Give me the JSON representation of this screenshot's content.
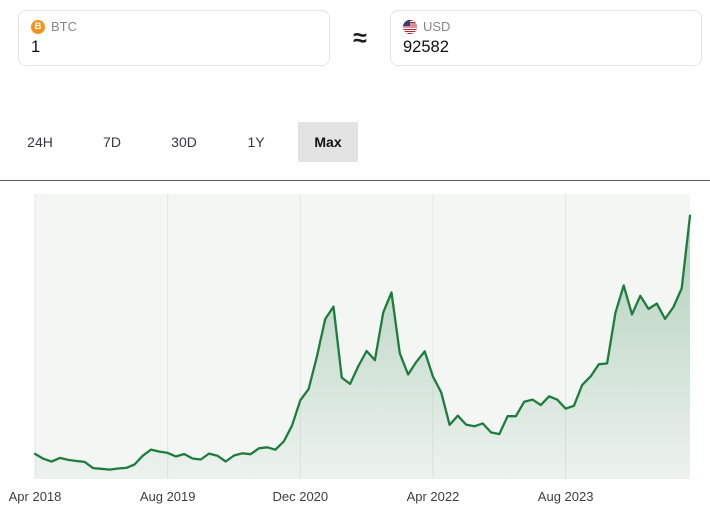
{
  "converter": {
    "from": {
      "currency": "BTC",
      "amount": "1",
      "icon": "bitcoin-icon",
      "icon_glyph": "B",
      "icon_color": "#f7931a"
    },
    "approx_symbol": "≈",
    "to": {
      "currency": "USD",
      "amount": "92582",
      "icon": "us-flag-icon"
    }
  },
  "range_tabs": {
    "options": [
      "24H",
      "7D",
      "30D",
      "1Y",
      "Max"
    ],
    "selected": "Max"
  },
  "chart_data": {
    "type": "area",
    "title": "BTC to USD price chart (Max range)",
    "xlabel": "",
    "ylabel": "",
    "x_start": "2018-04",
    "x_interval": "month",
    "months": [
      "2018-04",
      "2018-05",
      "2018-06",
      "2018-07",
      "2018-08",
      "2018-09",
      "2018-10",
      "2018-11",
      "2018-12",
      "2019-01",
      "2019-02",
      "2019-03",
      "2019-04",
      "2019-05",
      "2019-06",
      "2019-07",
      "2019-08",
      "2019-09",
      "2019-10",
      "2019-11",
      "2019-12",
      "2020-01",
      "2020-02",
      "2020-03",
      "2020-04",
      "2020-05",
      "2020-06",
      "2020-07",
      "2020-08",
      "2020-09",
      "2020-10",
      "2020-11",
      "2020-12",
      "2021-01",
      "2021-02",
      "2021-03",
      "2021-04",
      "2021-05",
      "2021-06",
      "2021-07",
      "2021-08",
      "2021-09",
      "2021-10",
      "2021-11",
      "2021-12",
      "2022-01",
      "2022-02",
      "2022-03",
      "2022-04",
      "2022-05",
      "2022-06",
      "2022-07",
      "2022-08",
      "2022-09",
      "2022-10",
      "2022-11",
      "2022-12",
      "2023-01",
      "2023-02",
      "2023-03",
      "2023-04",
      "2023-05",
      "2023-06",
      "2023-07",
      "2023-08",
      "2023-09",
      "2023-10",
      "2023-11",
      "2023-12",
      "2024-01",
      "2024-02",
      "2024-03",
      "2024-04",
      "2024-05",
      "2024-06",
      "2024-07",
      "2024-08",
      "2024-09",
      "2024-10",
      "2024-11"
    ],
    "prices": [
      9240,
      7494,
      6404,
      7780,
      7037,
      6625,
      6317,
      4017,
      3742,
      3457,
      3854,
      4105,
      5350,
      8574,
      10817,
      10085,
      9630,
      8293,
      9199,
      7569,
      7193,
      9350,
      8599,
      6438,
      8658,
      9461,
      9137,
      11323,
      11680,
      10784,
      13781,
      19625,
      28994,
      33114,
      45137,
      58918,
      63500,
      37332,
      35040,
      41626,
      47166,
      43790,
      61318,
      68700,
      46306,
      38483,
      43193,
      47000,
      37714,
      31792,
      19942,
      23336,
      20049,
      19431,
      20495,
      17168,
      16547,
      23139,
      23147,
      28478,
      29268,
      27219,
      30477,
      29230,
      25931,
      26967,
      34667,
      37718,
      42265,
      42580,
      61198,
      71333,
      60636,
      67491,
      62678,
      64619,
      58969,
      63329,
      70215,
      97000
    ],
    "x_tick_labels": [
      "Apr 2018",
      "Aug 2019",
      "Dec 2020",
      "Apr 2022",
      "Aug 2023"
    ],
    "x_tick_indices": [
      0,
      16,
      32,
      48,
      64
    ],
    "ylim": [
      0,
      105000
    ],
    "grid": "vertical-only",
    "legend": "none",
    "line_color": "#1e7d3e",
    "fill_top_color": "rgba(30,125,62,0.32)",
    "fill_bottom_color": "rgba(30,125,62,0.03)",
    "plot_bg": "#f4f6f4",
    "grid_color": "#e4e6e4"
  }
}
